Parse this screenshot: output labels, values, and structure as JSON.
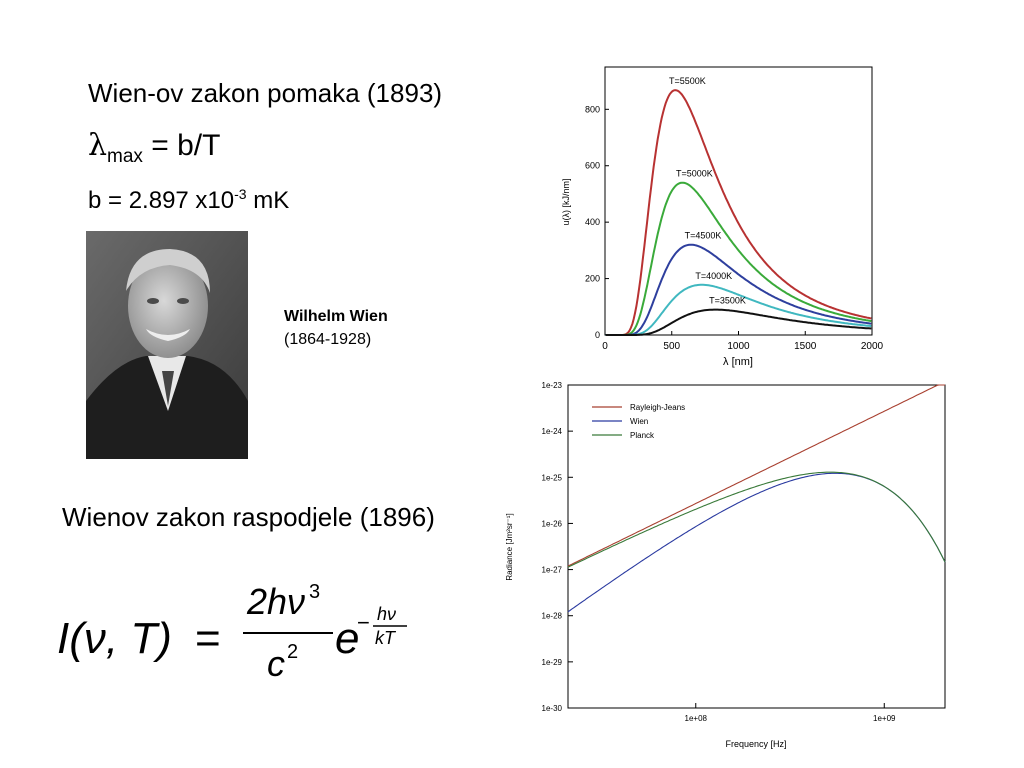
{
  "slide": {
    "title1": "Wien-ov zakon pomaka (1893)",
    "lambda_symbol": "λ",
    "lambda_sub": "max",
    "lambda_rhs": " = b/T",
    "b_text": "b = 2.897 x10",
    "b_exp": "-3",
    "b_unit": "  mK",
    "person_name": "Wilhelm Wien",
    "person_years": "(1864-1928)",
    "title2": "Wienov zakon raspodjele (1896)"
  },
  "chart_data": [
    {
      "type": "line",
      "xlabel": "λ [nm]",
      "ylabel": "u(λ)  [kJ/nm]",
      "xlim": [
        0,
        2000
      ],
      "ylim": [
        0,
        950
      ],
      "xticks": [
        0,
        500,
        1000,
        1500,
        2000
      ],
      "yticks": [
        0,
        200,
        400,
        600,
        800
      ],
      "grid": false,
      "series": [
        {
          "name": "T=5500K",
          "color": "#b83232",
          "peak_x": 527,
          "peak_y": 868
        },
        {
          "name": "T=5000K",
          "color": "#3aaa3a",
          "peak_x": 580,
          "peak_y": 540
        },
        {
          "name": "T=4500K",
          "color": "#2e3f9e",
          "peak_x": 644,
          "peak_y": 320
        },
        {
          "name": "T=4000K",
          "color": "#40b8c0",
          "peak_x": 725,
          "peak_y": 178
        },
        {
          "name": "T=3500K",
          "color": "#111111",
          "peak_x": 828,
          "peak_y": 90
        }
      ]
    },
    {
      "type": "line",
      "xlabel": "Frequency [Hz]",
      "ylabel": "Radiance [Jm²sr⁻¹]",
      "xscale": "log",
      "yscale": "log",
      "xlim": [
        21000000.0,
        2100000000.0
      ],
      "ylim": [
        1e-30,
        1e-23
      ],
      "xticks": [
        "1e+08",
        "1e+09"
      ],
      "yticks": [
        "1e-23",
        "1e-24",
        "1e-25",
        "1e-26",
        "1e-27",
        "1e-28",
        "1e-29",
        "1e-30"
      ],
      "legend_position": "top-left",
      "grid": false,
      "series": [
        {
          "name": "Rayleigh-Jeans",
          "color": "#a84030"
        },
        {
          "name": "Wien",
          "color": "#2a3aa0"
        },
        {
          "name": "Planck",
          "color": "#3a7a3a"
        }
      ]
    }
  ]
}
